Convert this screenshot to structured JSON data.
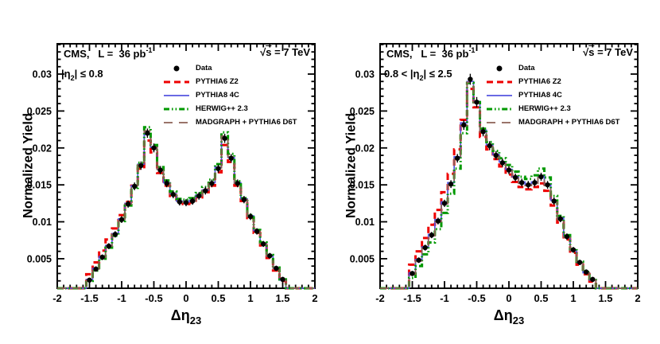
{
  "figure": {
    "background": "#ffffff",
    "frame_color": "#000000"
  },
  "chart_data": [
    {
      "type": "line",
      "header_left": "CMS,   L =  36 pb",
      "header_left_sup": "-1",
      "header_right_pre": "√",
      "header_right_s": "s",
      "header_right_post": " = 7 TeV",
      "region_pre": "|η",
      "region_sub": "2",
      "region_post": "| ≤ 0.8",
      "ylabel": "Normalized Yield",
      "xlabel_pre": "Δη",
      "xlabel_sub": "23",
      "xlim": [
        -2,
        2
      ],
      "ylim": [
        0.001,
        0.0341
      ],
      "xticks": [
        -2,
        -1.5,
        -1,
        -0.5,
        0,
        0.5,
        1,
        1.5,
        2
      ],
      "yticks": [
        0.005,
        0.01,
        0.015,
        0.02,
        0.025,
        0.03
      ],
      "x_minor_step": 0.1,
      "y_minor_step": 0.001,
      "x": [
        -1.5,
        -1.4,
        -1.3,
        -1.2,
        -1.1,
        -1.0,
        -0.9,
        -0.8,
        -0.7,
        -0.6,
        -0.5,
        -0.4,
        -0.3,
        -0.2,
        -0.1,
        0.0,
        0.1,
        0.2,
        0.3,
        0.4,
        0.5,
        0.6,
        0.7,
        0.8,
        0.9,
        1.0,
        1.1,
        1.2,
        1.3,
        1.4,
        1.5
      ],
      "series": [
        {
          "name": "PYTHIA6 Z2",
          "type": "step",
          "color": "#ee0000",
          "dash": "8 5",
          "width": 3,
          "values": [
            0.0029,
            0.0045,
            0.0061,
            0.0076,
            0.0091,
            0.0109,
            0.0127,
            0.0149,
            0.0172,
            0.021,
            0.0194,
            0.0166,
            0.0149,
            0.0135,
            0.0126,
            0.0124,
            0.0126,
            0.0133,
            0.014,
            0.0149,
            0.0167,
            0.0204,
            0.0181,
            0.0149,
            0.0128,
            0.0105,
            0.0085,
            0.0068,
            0.0051,
            0.0034,
            0.002
          ]
        },
        {
          "name": "PYTHIA8 4C",
          "type": "step",
          "color": "#5555e0",
          "dash": "",
          "width": 1.7,
          "values": [
            0.0022,
            0.0037,
            0.0053,
            0.0068,
            0.0084,
            0.0104,
            0.0125,
            0.0149,
            0.0178,
            0.0218,
            0.0201,
            0.0171,
            0.0153,
            0.0138,
            0.0128,
            0.0127,
            0.0129,
            0.0136,
            0.0143,
            0.0153,
            0.0174,
            0.0214,
            0.0187,
            0.0153,
            0.0131,
            0.0108,
            0.0088,
            0.0071,
            0.0054,
            0.0037,
            0.0021
          ]
        },
        {
          "name": "HERWIG++ 2.3",
          "type": "step",
          "color": "#009900",
          "dash": "7 3 1.6 3 1.6 3",
          "width": 3,
          "values": [
            0.002,
            0.0034,
            0.005,
            0.0065,
            0.0081,
            0.0101,
            0.0122,
            0.0146,
            0.018,
            0.0228,
            0.0204,
            0.0174,
            0.0156,
            0.0141,
            0.0131,
            0.013,
            0.0132,
            0.0139,
            0.0147,
            0.0157,
            0.0178,
            0.0221,
            0.0192,
            0.0155,
            0.0132,
            0.0109,
            0.0089,
            0.0072,
            0.0055,
            0.0038,
            0.0022
          ]
        },
        {
          "name": "MADGRAPH + PYTHIA6 D6T",
          "type": "step",
          "color": "#8c6055",
          "dash": "11 8",
          "width": 1.8,
          "values": [
            0.0021,
            0.0036,
            0.0052,
            0.0067,
            0.0083,
            0.0103,
            0.0124,
            0.0149,
            0.0177,
            0.0223,
            0.0201,
            0.0171,
            0.0152,
            0.0137,
            0.0127,
            0.0126,
            0.0128,
            0.0135,
            0.0142,
            0.0152,
            0.0173,
            0.0216,
            0.0188,
            0.0152,
            0.013,
            0.0107,
            0.0087,
            0.007,
            0.0053,
            0.0036,
            0.0021
          ]
        },
        {
          "name": "Data",
          "type": "points",
          "color": "#000000",
          "dash": "",
          "width": 1.4,
          "values": [
            0.0021,
            0.0036,
            0.0052,
            0.0067,
            0.0083,
            0.0103,
            0.0124,
            0.0148,
            0.0176,
            0.022,
            0.02,
            0.017,
            0.0152,
            0.0137,
            0.0127,
            0.0126,
            0.0128,
            0.0135,
            0.0142,
            0.0152,
            0.0172,
            0.0213,
            0.0186,
            0.0152,
            0.013,
            0.0107,
            0.0087,
            0.007,
            0.0054,
            0.0037,
            0.0022
          ]
        }
      ],
      "legend_order": [
        "Data",
        "PYTHIA6 Z2",
        "PYTHIA8 4C",
        "HERWIG++ 2.3",
        "MADGRAPH + PYTHIA6 D6T"
      ]
    },
    {
      "type": "line",
      "header_left": "CMS,   L =  36 pb",
      "header_left_sup": "-1",
      "header_right_pre": "√",
      "header_right_s": "s",
      "header_right_post": " = 7 TeV",
      "region_pre": "0.8 < |η",
      "region_sub": "2",
      "region_post": "| ≤ 2.5",
      "ylabel": "Normalized Yield",
      "xlabel_pre": "Δη",
      "xlabel_sub": "23",
      "xlim": [
        -2,
        2
      ],
      "ylim": [
        0.001,
        0.0341
      ],
      "xticks": [
        -2,
        -1.5,
        -1,
        -0.5,
        0,
        0.5,
        1,
        1.5,
        2
      ],
      "yticks": [
        0.005,
        0.01,
        0.015,
        0.02,
        0.025,
        0.03
      ],
      "x_minor_step": 0.1,
      "y_minor_step": 0.001,
      "x": [
        -1.5,
        -1.4,
        -1.3,
        -1.2,
        -1.1,
        -1.0,
        -0.9,
        -0.8,
        -0.7,
        -0.6,
        -0.5,
        -0.4,
        -0.3,
        -0.2,
        -0.1,
        0.0,
        0.1,
        0.2,
        0.3,
        0.4,
        0.5,
        0.6,
        0.7,
        0.8,
        0.9,
        1.0,
        1.1,
        1.2,
        1.3,
        1.4,
        1.5
      ],
      "series": [
        {
          "name": "PYTHIA6 Z2",
          "type": "step",
          "color": "#ee0000",
          "dash": "8 5",
          "width": 3,
          "values": [
            0.0042,
            0.006,
            0.0078,
            0.0096,
            0.0116,
            0.014,
            0.0165,
            0.0198,
            0.0238,
            0.028,
            0.0255,
            0.0215,
            0.0198,
            0.0185,
            0.0175,
            0.0164,
            0.0154,
            0.0147,
            0.0144,
            0.0147,
            0.0152,
            0.0142,
            0.0122,
            0.0099,
            0.0076,
            0.0058,
            0.0042,
            0.0029,
            0.0019,
            0,
            0
          ]
        },
        {
          "name": "PYTHIA8 4C",
          "type": "step",
          "color": "#5555e0",
          "dash": "",
          "width": 1.7,
          "values": [
            0.0031,
            0.0049,
            0.0066,
            0.0083,
            0.0103,
            0.0127,
            0.0153,
            0.0188,
            0.0234,
            0.029,
            0.0263,
            0.0224,
            0.0204,
            0.0191,
            0.0181,
            0.0171,
            0.0161,
            0.0154,
            0.0151,
            0.0154,
            0.0162,
            0.0151,
            0.0129,
            0.0105,
            0.0081,
            0.0062,
            0.0045,
            0.0031,
            0.0021,
            0,
            0
          ]
        },
        {
          "name": "HERWIG++ 2.3",
          "type": "step",
          "color": "#009900",
          "dash": "7 3 1.6 3 1.6 3",
          "width": 3,
          "values": [
            0.0024,
            0.004,
            0.0056,
            0.0072,
            0.009,
            0.0112,
            0.0138,
            0.0172,
            0.022,
            0.0288,
            0.0262,
            0.0226,
            0.0208,
            0.0196,
            0.0186,
            0.0177,
            0.0168,
            0.0161,
            0.0158,
            0.0163,
            0.0172,
            0.016,
            0.0135,
            0.0108,
            0.0082,
            0.0063,
            0.0046,
            0.0032,
            0.0021,
            0,
            0
          ]
        },
        {
          "name": "MADGRAPH + PYTHIA6 D6T",
          "type": "step",
          "color": "#8c6055",
          "dash": "11 8",
          "width": 1.8,
          "values": [
            0.0029,
            0.0047,
            0.0064,
            0.0081,
            0.01,
            0.0124,
            0.015,
            0.0185,
            0.023,
            0.0289,
            0.0261,
            0.0221,
            0.0202,
            0.0189,
            0.0179,
            0.0169,
            0.0159,
            0.0152,
            0.0149,
            0.0152,
            0.016,
            0.0149,
            0.0127,
            0.0103,
            0.0079,
            0.0061,
            0.0044,
            0.0031,
            0.0021,
            0,
            0
          ]
        },
        {
          "name": "Data",
          "type": "points",
          "color": "#000000",
          "dash": "",
          "width": 1.4,
          "values": [
            0.003,
            0.0048,
            0.0065,
            0.0082,
            0.0101,
            0.0125,
            0.0151,
            0.0186,
            0.0231,
            0.0293,
            0.0262,
            0.0222,
            0.0203,
            0.019,
            0.018,
            0.017,
            0.016,
            0.0153,
            0.015,
            0.0153,
            0.0161,
            0.015,
            0.0128,
            0.0104,
            0.008,
            0.0062,
            0.0045,
            0.0032,
            0.0022,
            0,
            0
          ]
        }
      ],
      "legend_order": [
        "Data",
        "PYTHIA6 Z2",
        "PYTHIA8 4C",
        "HERWIG++ 2.3",
        "MADGRAPH + PYTHIA6 D6T"
      ]
    }
  ]
}
